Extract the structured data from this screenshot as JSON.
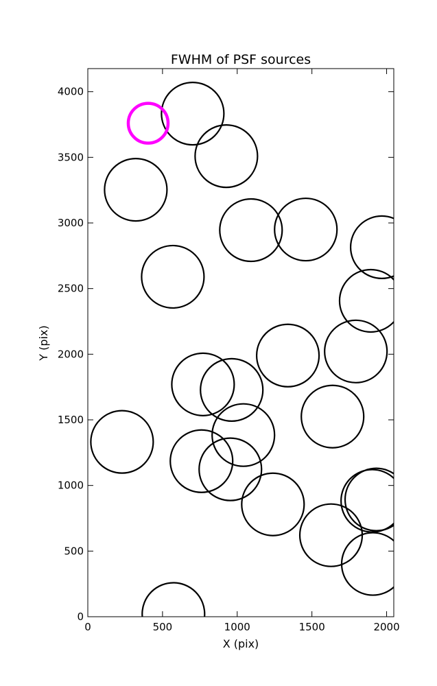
{
  "chart_data": {
    "type": "scatter",
    "title": "FWHM of PSF sources",
    "x_label": "X (pix)",
    "y_label": "Y (pix)",
    "xlim": [
      0,
      2048
    ],
    "ylim": [
      0,
      4176
    ],
    "xticks": [
      0,
      500,
      1000,
      1500,
      2000
    ],
    "yticks": [
      0,
      500,
      1000,
      1500,
      2000,
      2500,
      3000,
      3500,
      4000
    ],
    "series": [
      {
        "color": "#000000",
        "x": [
          702,
          927,
          321,
          1092,
          1459,
          1968,
          1894,
          569,
          1339,
          1794,
          771,
          963,
          1638,
          229,
          1041,
          761,
          954,
          1239,
          1628,
          1904,
          1931,
          1908,
          573
        ],
        "values": [
          3833,
          3509,
          3253,
          2945,
          2950,
          2815,
          2407,
          2590,
          1990,
          2021,
          1770,
          1728,
          1525,
          1332,
          1384,
          1185,
          1123,
          856,
          621,
          883,
          893,
          402,
          21
        ]
      },
      {
        "color": "#ff00ff",
        "x": [
          404
        ],
        "values": [
          3760
        ]
      }
    ]
  }
}
